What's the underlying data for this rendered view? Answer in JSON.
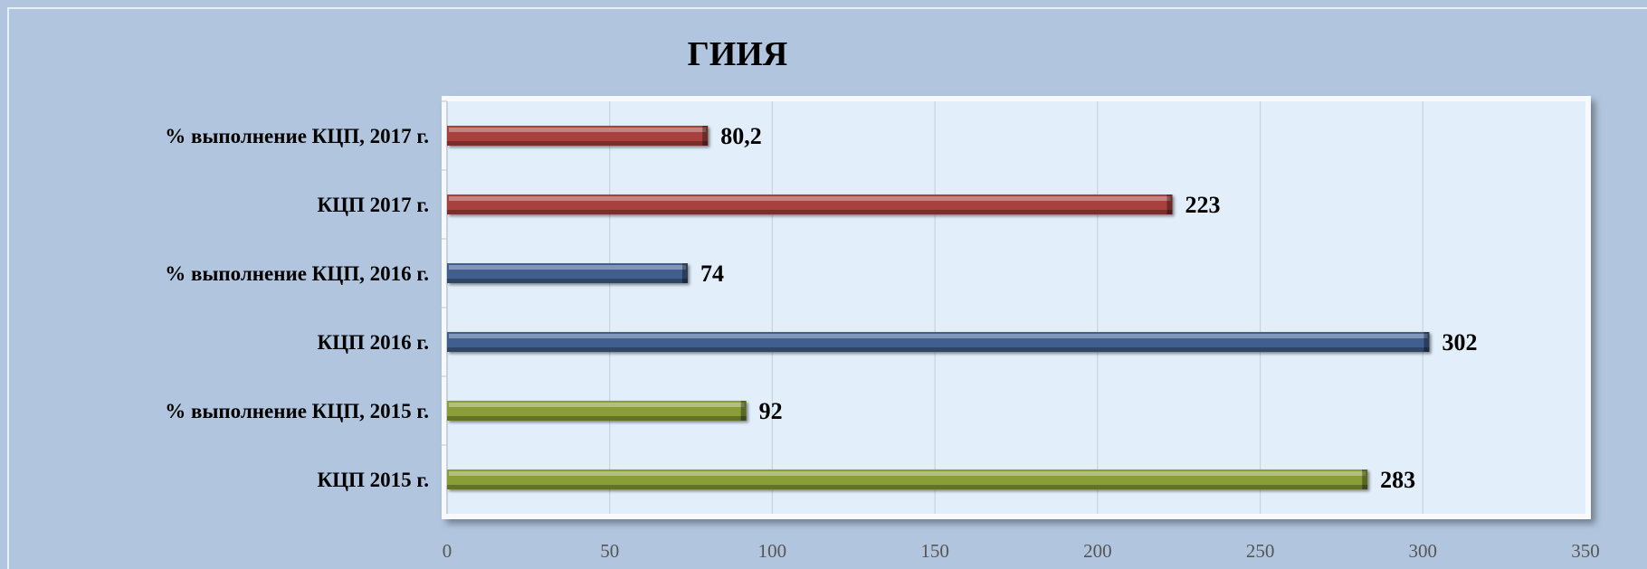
{
  "chart_data": {
    "type": "bar",
    "orientation": "horizontal",
    "title": "ГИИЯ",
    "xlabel": "",
    "ylabel": "",
    "xlim": [
      0,
      350
    ],
    "x_ticks": [
      "0",
      "50",
      "100",
      "150",
      "200",
      "250",
      "300",
      "350"
    ],
    "grid": true,
    "legend": "none",
    "categories": [
      "% выполнение КЦП, 2017 г.",
      "КЦП 2017 г.",
      "% выполнение КЦП, 2016 г.",
      "КЦП 2016 г.",
      "% выполнение КЦП, 2015 г.",
      "КЦП 2015 г."
    ],
    "values": [
      80.2,
      223,
      74,
      302,
      92,
      283
    ],
    "value_labels": [
      "80,2",
      "223",
      "74",
      "302",
      "92",
      "283"
    ],
    "bar_colors": [
      "#a8403c",
      "#a8403c",
      "#3f5f8e",
      "#3f5f8e",
      "#8a9e38",
      "#8a9e38"
    ],
    "colors": {
      "background": "#b1c6de",
      "plot_background": "#e2eef9",
      "gridline": "#c9d3dd",
      "tick_label": "#555555"
    }
  }
}
